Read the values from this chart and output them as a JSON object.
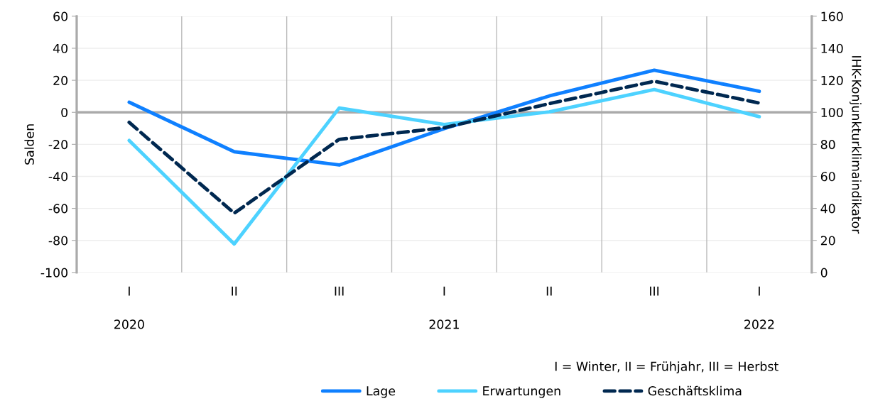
{
  "chart_data": {
    "type": "line",
    "categories": [
      "I\n\n2020",
      "II",
      "III",
      "I\n\n2021",
      "II",
      "III",
      "I\n\n2022"
    ],
    "series": [
      {
        "name": "Lage",
        "color": "#0f80ff",
        "line_style": "solid",
        "values": [
          6.3,
          -24.6,
          -32.9,
          -10.2,
          10.2,
          26.3,
          13.1
        ]
      },
      {
        "name": "Erwartungen",
        "color": "#4dd2ff",
        "line_style": "solid",
        "values": [
          -17.6,
          -82.2,
          2.7,
          -7.6,
          0.3,
          14.2,
          -2.7
        ]
      },
      {
        "name": "Geschäftsklima",
        "color": "#002850",
        "line_style": "dashed",
        "axis": "y2",
        "values": [
          93.7,
          37,
          83.1,
          90.4,
          105.4,
          119.4,
          105.8
        ]
      }
    ],
    "ylabel": "Salden",
    "y2label": "IHK-Konjunkturklimaindikator",
    "ylim": [
      -100,
      60
    ],
    "yticks": [
      -100,
      -80,
      -60,
      -40,
      -20,
      0,
      20,
      40,
      60
    ],
    "y2lim": [
      0,
      160
    ],
    "y2ticks": [
      0,
      20,
      40,
      60,
      80,
      100,
      120,
      140,
      160
    ],
    "ref_lines": [
      {
        "axis": "y",
        "value": 0,
        "color": "#aaaaaa"
      }
    ],
    "annotations": [
      "I = Winter, II = Frühjahr, III = Herbst"
    ],
    "grid": true,
    "legend": "bottom",
    "marker": "none"
  }
}
